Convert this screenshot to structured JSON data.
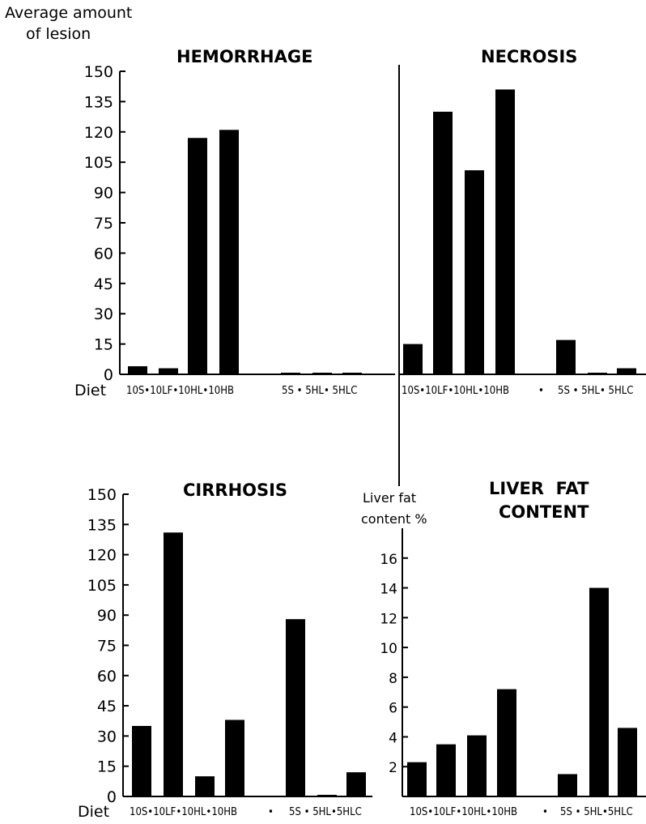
{
  "figure": {
    "y_axis_title": [
      "Average amount",
      "of lesion"
    ],
    "row_label": "Diet"
  },
  "chart_data": [
    {
      "type": "bar",
      "title": "HEMORRHAGE",
      "ylim": [
        0,
        150
      ],
      "yticks": [
        0,
        15,
        30,
        45,
        60,
        75,
        90,
        105,
        120,
        135,
        150
      ],
      "categories": [
        "10S",
        "10LF",
        "10HL",
        "10HB",
        "5S",
        "5HL",
        "5HLC"
      ],
      "category_labels": [
        "10S•10LF•10HL•10HB",
        "5S • 5HL• 5HLC"
      ],
      "values": [
        4,
        3,
        117,
        121,
        0,
        0,
        0
      ]
    },
    {
      "type": "bar",
      "title": "NECROSIS",
      "ylim": [
        0,
        150
      ],
      "yticks": [],
      "categories": [
        "10S",
        "10LF",
        "10HL",
        "10HB",
        "5S",
        "5HL",
        "5HLC"
      ],
      "category_labels": [
        "10S•10LF•10HL•10HB",
        "•",
        "5S • 5HL• 5HLC"
      ],
      "values": [
        15,
        130,
        101,
        141,
        17,
        0,
        3
      ]
    },
    {
      "type": "bar",
      "title": "CIRRHOSIS",
      "ylim": [
        0,
        150
      ],
      "yticks": [
        0,
        15,
        30,
        45,
        60,
        75,
        90,
        105,
        120,
        135,
        150
      ],
      "categories": [
        "10S",
        "10LF",
        "10HL",
        "10HB",
        "5S",
        "5HL",
        "5HLC"
      ],
      "category_labels": [
        "10S•10LF•10HL•10HB",
        "•",
        "5S • 5HL•5HLC"
      ],
      "values": [
        35,
        131,
        10,
        38,
        88,
        0,
        12
      ]
    },
    {
      "type": "bar",
      "title": "LIVER FAT CONTENT",
      "ylabel": [
        "Liver fat",
        "content %"
      ],
      "ylim": [
        0,
        18
      ],
      "yticks": [
        2,
        4,
        6,
        8,
        10,
        12,
        14,
        16
      ],
      "categories": [
        "10S",
        "10LF",
        "10HL",
        "10HB",
        "5S",
        "5HL",
        "5HLC"
      ],
      "category_labels": [
        "10S•10LF•10HL•10HB",
        "•",
        "5S • 5HL•5HLC"
      ],
      "values": [
        2.3,
        3.5,
        4.1,
        7.2,
        1.5,
        14.0,
        4.6
      ]
    }
  ]
}
